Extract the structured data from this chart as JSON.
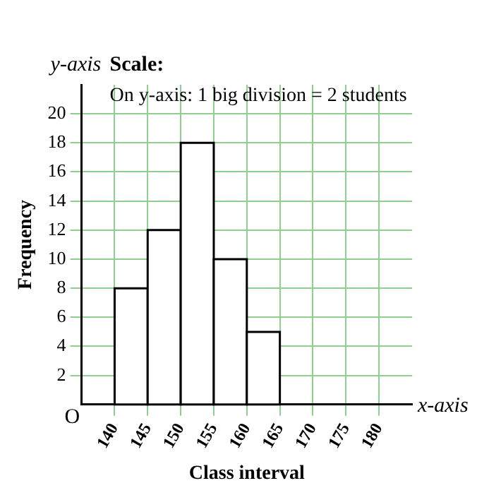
{
  "chart_data": {
    "type": "histogram",
    "xlabel": "Class interval",
    "ylabel": "Frequency",
    "bins": [
      140,
      145,
      150,
      155,
      160,
      165
    ],
    "values": [
      8,
      12,
      18,
      10,
      5
    ],
    "color": "#ffffff",
    "xlim": [
      135,
      185
    ],
    "xticks": [
      140,
      145,
      150,
      155,
      160,
      165,
      170,
      175,
      180
    ],
    "ylim": [
      0,
      22
    ],
    "yticks": [
      2,
      4,
      6,
      8,
      10,
      12,
      14,
      16,
      18,
      20
    ],
    "grid": true,
    "annotations": [
      "y-axis",
      "x-axis",
      "O",
      "Scale:",
      "On y-axis: 1 big division = 2 students"
    ]
  }
}
